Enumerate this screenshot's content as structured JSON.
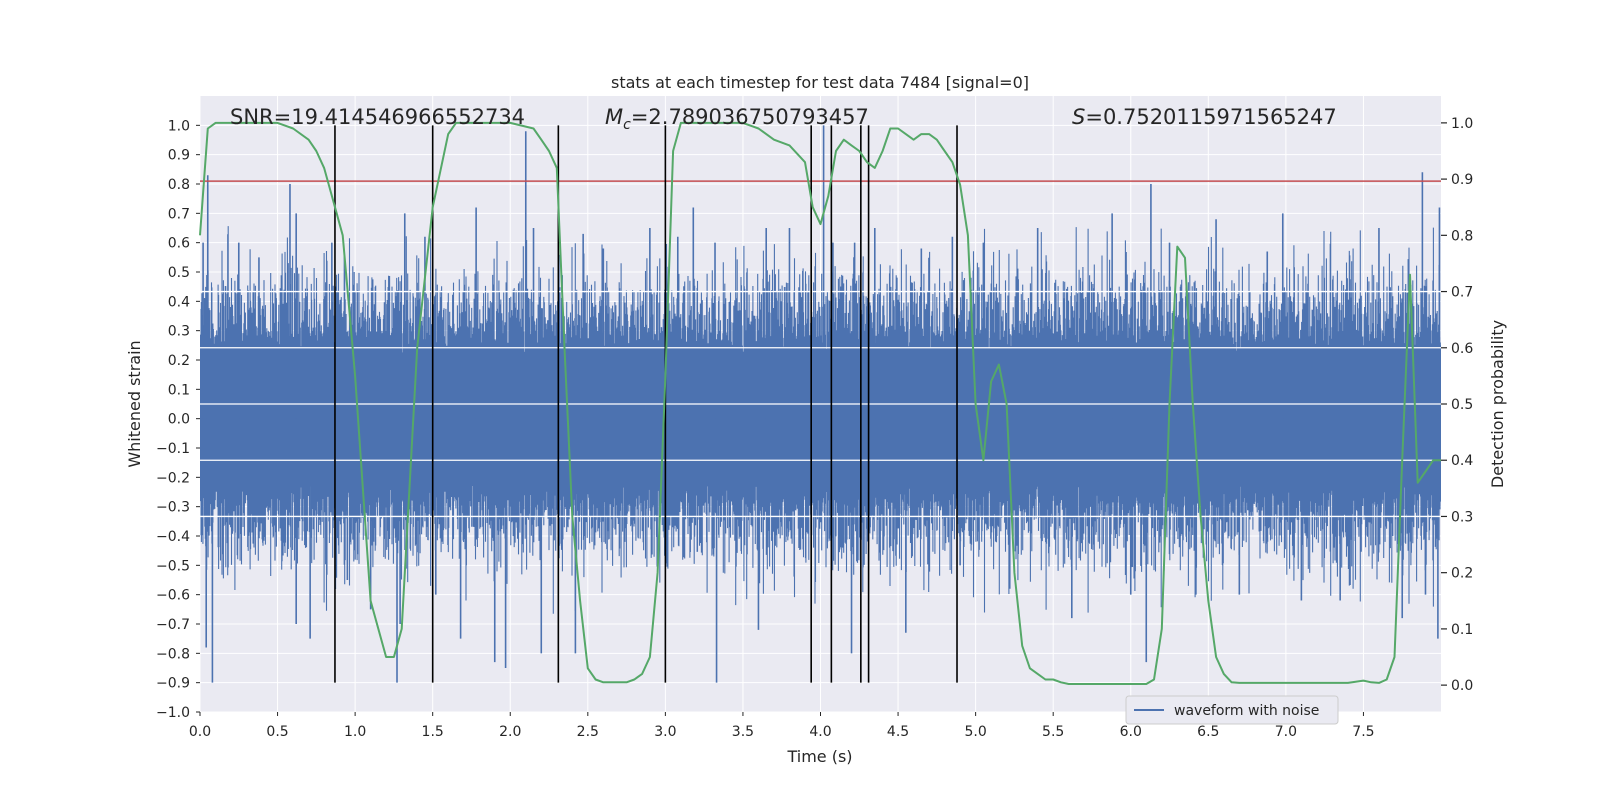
{
  "chart_data": {
    "type": "line",
    "title": "stats at each timestep for test data 7484 [signal=0]",
    "xlabel": "Time (s)",
    "ylabel": "Whitened strain",
    "y2label": "Detection probability",
    "xlim": [
      0,
      8
    ],
    "ylim": [
      -1.0,
      1.1
    ],
    "y2lim": [
      -0.0478,
      1.0478
    ],
    "xticks": [
      "0.0",
      "0.5",
      "1.0",
      "1.5",
      "2.0",
      "2.5",
      "3.0",
      "3.5",
      "4.0",
      "4.5",
      "5.0",
      "5.5",
      "6.0",
      "6.5",
      "7.0",
      "7.5"
    ],
    "xtick_values": [
      0,
      0.5,
      1,
      1.5,
      2,
      2.5,
      3,
      3.5,
      4,
      4.5,
      5,
      5.5,
      6,
      6.5,
      7,
      7.5
    ],
    "yticks": [
      "−1.0",
      "−0.9",
      "−0.8",
      "−0.7",
      "−0.6",
      "−0.5",
      "−0.4",
      "−0.3",
      "−0.2",
      "−0.1",
      "0.0",
      "0.1",
      "0.2",
      "0.3",
      "0.4",
      "0.5",
      "0.6",
      "0.7",
      "0.8",
      "0.9",
      "1.0"
    ],
    "ytick_values": [
      -1,
      -0.9,
      -0.8,
      -0.7,
      -0.6,
      -0.5,
      -0.4,
      -0.3,
      -0.2,
      -0.1,
      0,
      0.1,
      0.2,
      0.3,
      0.4,
      0.5,
      0.6,
      0.7,
      0.8,
      0.9,
      1.0
    ],
    "y2ticks": [
      "0.0",
      "0.1",
      "0.2",
      "0.3",
      "0.4",
      "0.5",
      "0.6",
      "0.7",
      "0.8",
      "0.9",
      "1.0"
    ],
    "y2tick_values": [
      0,
      0.1,
      0.2,
      0.3,
      0.4,
      0.5,
      0.6,
      0.7,
      0.8,
      0.9,
      1.0
    ],
    "annotations": {
      "snr": "SNR=19.414546966552734",
      "mc_symbol": "M",
      "mc_sub": "c",
      "mc_value": "=2.789036750793457",
      "s_symbol": "S",
      "s_value": "=0.7520115971565247"
    },
    "threshold": {
      "y": 0.81,
      "color": "#c44e52"
    },
    "vlines": [
      0.87,
      1.5,
      2.31,
      3.0,
      3.94,
      4.07,
      4.26,
      4.31,
      4.88
    ],
    "vline_range": [
      -0.9,
      1.0
    ],
    "series": [
      {
        "name": "waveform with noise",
        "color": "#4c72b0",
        "envelope_upper": [
          [
            0,
            0.52
          ],
          [
            0.5,
            0.5
          ],
          [
            1,
            0.5
          ],
          [
            1.5,
            0.52
          ],
          [
            2,
            0.5
          ],
          [
            2.5,
            0.5
          ],
          [
            3,
            0.52
          ],
          [
            3.5,
            0.52
          ],
          [
            4,
            0.5
          ],
          [
            4.5,
            0.5
          ],
          [
            5,
            0.5
          ],
          [
            5.5,
            0.5
          ],
          [
            6,
            0.5
          ],
          [
            6.5,
            0.5
          ],
          [
            7,
            0.5
          ],
          [
            7.5,
            0.5
          ],
          [
            8,
            0.5
          ]
        ],
        "spikes": [
          [
            0.02,
            0.6
          ],
          [
            0.05,
            0.83
          ],
          [
            0.08,
            -0.9
          ],
          [
            0.04,
            -0.78
          ],
          [
            0.25,
            0.6
          ],
          [
            0.38,
            0.55
          ],
          [
            0.58,
            0.8
          ],
          [
            0.62,
            0.7
          ],
          [
            0.62,
            -0.7
          ],
          [
            0.71,
            -0.75
          ],
          [
            0.85,
            0.6
          ],
          [
            0.95,
            -0.55
          ],
          [
            1.1,
            -0.65
          ],
          [
            1.27,
            -0.9
          ],
          [
            1.29,
            -0.7
          ],
          [
            1.32,
            0.7
          ],
          [
            1.45,
            0.62
          ],
          [
            1.52,
            -0.6
          ],
          [
            1.68,
            -0.75
          ],
          [
            1.78,
            0.72
          ],
          [
            1.9,
            -0.83
          ],
          [
            1.97,
            -0.85
          ],
          [
            2.1,
            0.98
          ],
          [
            2.15,
            0.65
          ],
          [
            2.2,
            -0.8
          ],
          [
            2.42,
            -0.8
          ],
          [
            2.47,
            0.63
          ],
          [
            2.6,
            0.58
          ],
          [
            2.9,
            0.65
          ],
          [
            3.08,
            0.62
          ],
          [
            3.18,
            0.72
          ],
          [
            3.32,
            0.6
          ],
          [
            3.33,
            -0.9
          ],
          [
            3.6,
            -0.72
          ],
          [
            3.65,
            0.65
          ],
          [
            3.8,
            0.65
          ],
          [
            3.94,
            -0.38
          ],
          [
            4.02,
            1.0
          ],
          [
            4.08,
            0.6
          ],
          [
            4.2,
            -0.8
          ],
          [
            4.22,
            0.6
          ],
          [
            4.35,
            0.65
          ],
          [
            4.55,
            -0.73
          ],
          [
            4.65,
            0.58
          ],
          [
            4.85,
            0.62
          ],
          [
            4.9,
            -0.5
          ],
          [
            5.05,
            0.6
          ],
          [
            5.22,
            -0.58
          ],
          [
            5.4,
            0.65
          ],
          [
            5.62,
            -0.68
          ],
          [
            5.88,
            0.7
          ],
          [
            6.0,
            -0.6
          ],
          [
            6.1,
            -0.83
          ],
          [
            6.13,
            0.8
          ],
          [
            6.25,
            0.6
          ],
          [
            6.42,
            -0.6
          ],
          [
            6.55,
            0.68
          ],
          [
            6.7,
            -0.6
          ],
          [
            6.88,
            0.57
          ],
          [
            6.98,
            0.7
          ],
          [
            7.1,
            -0.62
          ],
          [
            7.35,
            -0.62
          ],
          [
            7.6,
            0.65
          ],
          [
            7.75,
            -0.68
          ],
          [
            7.88,
            0.84
          ],
          [
            7.9,
            -0.6
          ],
          [
            7.98,
            -0.75
          ],
          [
            7.99,
            0.72
          ]
        ]
      },
      {
        "name": "detection probability",
        "color": "#55a868",
        "axis": "right",
        "x": [
          0.0,
          0.05,
          0.1,
          0.3,
          0.5,
          0.6,
          0.7,
          0.75,
          0.8,
          0.85,
          0.92,
          1.0,
          1.1,
          1.2,
          1.25,
          1.3,
          1.4,
          1.5,
          1.6,
          1.65,
          1.75,
          2.0,
          2.15,
          2.2,
          2.25,
          2.3,
          2.35,
          2.4,
          2.45,
          2.5,
          2.55,
          2.6,
          2.75,
          2.8,
          2.85,
          2.9,
          2.95,
          3.0,
          3.05,
          3.1,
          3.2,
          3.5,
          3.6,
          3.7,
          3.8,
          3.9,
          3.95,
          4.0,
          4.05,
          4.1,
          4.15,
          4.2,
          4.25,
          4.3,
          4.35,
          4.4,
          4.45,
          4.5,
          4.55,
          4.6,
          4.65,
          4.7,
          4.75,
          4.8,
          4.85,
          4.9,
          4.95,
          5.0,
          5.05,
          5.1,
          5.15,
          5.2,
          5.25,
          5.3,
          5.35,
          5.4,
          5.45,
          5.5,
          5.55,
          5.6,
          5.7,
          5.9,
          6.1,
          6.15,
          6.2,
          6.25,
          6.3,
          6.35,
          6.4,
          6.45,
          6.5,
          6.55,
          6.6,
          6.65,
          6.7,
          6.8,
          7.0,
          7.2,
          7.4,
          7.5,
          7.55,
          7.6,
          7.65,
          7.7,
          7.75,
          7.8,
          7.85,
          7.9,
          7.95,
          8.0
        ],
        "y": [
          0.8,
          0.99,
          1.0,
          1.0,
          1.0,
          0.99,
          0.97,
          0.95,
          0.92,
          0.87,
          0.8,
          0.55,
          0.15,
          0.05,
          0.05,
          0.1,
          0.6,
          0.85,
          0.98,
          1.0,
          1.0,
          1.0,
          0.99,
          0.97,
          0.95,
          0.92,
          0.6,
          0.3,
          0.15,
          0.03,
          0.01,
          0.005,
          0.005,
          0.01,
          0.02,
          0.05,
          0.2,
          0.55,
          0.95,
          1.0,
          1.0,
          1.0,
          0.99,
          0.97,
          0.96,
          0.93,
          0.85,
          0.82,
          0.87,
          0.95,
          0.97,
          0.96,
          0.95,
          0.93,
          0.92,
          0.95,
          0.99,
          0.99,
          0.98,
          0.97,
          0.98,
          0.98,
          0.97,
          0.95,
          0.93,
          0.89,
          0.8,
          0.5,
          0.4,
          0.54,
          0.57,
          0.5,
          0.2,
          0.07,
          0.03,
          0.02,
          0.01,
          0.01,
          0.005,
          0.002,
          0.002,
          0.002,
          0.002,
          0.01,
          0.1,
          0.5,
          0.78,
          0.76,
          0.5,
          0.3,
          0.15,
          0.05,
          0.02,
          0.005,
          0.004,
          0.004,
          0.004,
          0.004,
          0.004,
          0.008,
          0.005,
          0.004,
          0.01,
          0.05,
          0.4,
          0.73,
          0.36,
          0.38,
          0.4,
          0.4
        ]
      }
    ],
    "legend": {
      "label": "waveform with noise",
      "position": "lower-right"
    }
  }
}
